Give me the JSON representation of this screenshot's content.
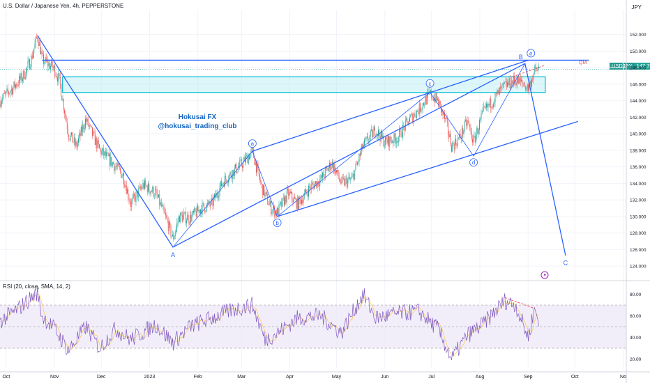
{
  "header": {
    "title": "U.S. Dollar / Japanese Yen, 4h, PEPPERSTONE",
    "currency": "JPY"
  },
  "price_tag": {
    "symbol": "USDJPY",
    "value": "147.798"
  },
  "watermark": {
    "line1": "Hokusai FX",
    "line2": "@hokusai_trading_club"
  },
  "rsi_header": "RSI (20, close, SMA, 14, 2)",
  "qm_label": "QM",
  "colors": {
    "up": "#26a69a",
    "down": "#ef5350",
    "lines": "#2962ff",
    "zone_fill": "#b2ebf2",
    "zone_stroke": "#00bcd4",
    "rsi": "#7e57c2",
    "rsi_band": "#ede7f6",
    "qm": "#ef5350"
  },
  "chart_data": [
    {
      "type": "candlestick",
      "y_ticks": [
        124,
        126,
        128,
        130,
        132,
        134,
        136,
        138,
        140,
        142,
        144,
        146,
        148,
        150,
        152
      ],
      "y_tick_labels": [
        "124.000",
        "126.000",
        "128.000",
        "130.000",
        "132.000",
        "134.000",
        "136.000",
        "138.000",
        "140.000",
        "142.000",
        "144.000",
        "146.000",
        "148.000",
        "150.000",
        "152.000"
      ],
      "ylim": [
        122.5,
        155
      ],
      "x_ticks": [
        "Oct",
        "Nov",
        "Dec",
        "2023",
        "Feb",
        "Mar",
        "Apr",
        "May",
        "Jun",
        "Jul",
        "Aug",
        "Sep",
        "Oct",
        "No"
      ],
      "price_path": [
        [
          "2022-09-27",
          144.0
        ],
        [
          "2022-10-05",
          145.5
        ],
        [
          "2022-10-12",
          147.0
        ],
        [
          "2022-10-17",
          149.0
        ],
        [
          "2022-10-21",
          151.9
        ],
        [
          "2022-10-24",
          149.0
        ],
        [
          "2022-11-01",
          147.8
        ],
        [
          "2022-11-04",
          146.5
        ],
        [
          "2022-11-10",
          140.0
        ],
        [
          "2022-11-15",
          138.5
        ],
        [
          "2022-11-21",
          141.7
        ],
        [
          "2022-11-30",
          138.0
        ],
        [
          "2022-12-08",
          136.5
        ],
        [
          "2022-12-15",
          135.0
        ],
        [
          "2022-12-20",
          131.5
        ],
        [
          "2022-12-28",
          133.8
        ],
        [
          "2023-01-05",
          132.8
        ],
        [
          "2023-01-12",
          129.5
        ],
        [
          "2023-01-16",
          127.3
        ],
        [
          "2023-01-20",
          130.0
        ],
        [
          "2023-01-27",
          129.8
        ],
        [
          "2023-02-03",
          131.0
        ],
        [
          "2023-02-10",
          131.5
        ],
        [
          "2023-02-17",
          134.2
        ],
        [
          "2023-02-24",
          135.5
        ],
        [
          "2023-03-02",
          136.5
        ],
        [
          "2023-03-08",
          137.9
        ],
        [
          "2023-03-14",
          133.5
        ],
        [
          "2023-03-20",
          131.0
        ],
        [
          "2023-03-24",
          130.5
        ],
        [
          "2023-03-31",
          132.8
        ],
        [
          "2023-04-06",
          131.5
        ],
        [
          "2023-04-14",
          133.5
        ],
        [
          "2023-04-21",
          134.5
        ],
        [
          "2023-04-28",
          136.5
        ],
        [
          "2023-05-04",
          134.0
        ],
        [
          "2023-05-11",
          134.5
        ],
        [
          "2023-05-18",
          138.5
        ],
        [
          "2023-05-26",
          140.5
        ],
        [
          "2023-06-01",
          139.0
        ],
        [
          "2023-06-09",
          139.5
        ],
        [
          "2023-06-16",
          141.5
        ],
        [
          "2023-06-23",
          143.0
        ],
        [
          "2023-06-30",
          144.8
        ],
        [
          "2023-07-05",
          144.0
        ],
        [
          "2023-07-10",
          141.5
        ],
        [
          "2023-07-14",
          138.5
        ],
        [
          "2023-07-19",
          139.5
        ],
        [
          "2023-07-24",
          141.5
        ],
        [
          "2023-07-28",
          139.0
        ],
        [
          "2023-08-03",
          142.5
        ],
        [
          "2023-08-10",
          144.2
        ],
        [
          "2023-08-17",
          145.8
        ],
        [
          "2023-08-24",
          146.5
        ],
        [
          "2023-08-29",
          146.0
        ],
        [
          "2023-09-01",
          145.5
        ],
        [
          "2023-09-05",
          147.5
        ],
        [
          "2023-09-08",
          147.8
        ]
      ],
      "waves": [
        {
          "label": "A",
          "circled": false,
          "date": "2023-01-16",
          "price": 126.3
        },
        {
          "label": "a",
          "circled": true,
          "date": "2023-03-08",
          "price": 137.9
        },
        {
          "label": "b",
          "circled": true,
          "date": "2023-03-24",
          "price": 130.0
        },
        {
          "label": "c",
          "circled": true,
          "date": "2023-06-30",
          "price": 145.0
        },
        {
          "label": "d",
          "circled": true,
          "date": "2023-07-28",
          "price": 137.3
        },
        {
          "label": "B",
          "circled": false,
          "date": "2023-08-30",
          "price": 148.5
        },
        {
          "label": "e",
          "circled": true,
          "date": "2023-09-01",
          "price": 148.9
        },
        {
          "label": "C",
          "circled": false,
          "date": "2023-09-25",
          "price": 125.3
        }
      ],
      "resistance_level": 148.9,
      "supply_zone": [
        145.0,
        146.9
      ],
      "current_price": 147.798
    },
    {
      "type": "line",
      "name": "RSI (20, close, SMA, 14, 2)",
      "y_ticks": [
        20,
        40,
        60,
        80
      ],
      "y_tick_labels": [
        "20.00",
        "40.00",
        "60.00",
        "80.00"
      ],
      "ylim": [
        12,
        92
      ],
      "band": [
        30,
        70
      ],
      "midline": 50,
      "rsi_path": [
        [
          "2022-09-27",
          55
        ],
        [
          "2022-10-10",
          68
        ],
        [
          "2022-10-21",
          82
        ],
        [
          "2022-10-24",
          60
        ],
        [
          "2022-11-01",
          48
        ],
        [
          "2022-11-10",
          28
        ],
        [
          "2022-11-21",
          50
        ],
        [
          "2022-11-30",
          30
        ],
        [
          "2022-12-10",
          48
        ],
        [
          "2022-12-20",
          38
        ],
        [
          "2023-01-05",
          52
        ],
        [
          "2023-01-16",
          35
        ],
        [
          "2023-01-27",
          50
        ],
        [
          "2023-02-10",
          58
        ],
        [
          "2023-02-24",
          66
        ],
        [
          "2023-03-08",
          70
        ],
        [
          "2023-03-16",
          38
        ],
        [
          "2023-03-24",
          44
        ],
        [
          "2023-04-06",
          58
        ],
        [
          "2023-04-21",
          60
        ],
        [
          "2023-05-04",
          44
        ],
        [
          "2023-05-18",
          80
        ],
        [
          "2023-05-26",
          58
        ],
        [
          "2023-06-09",
          62
        ],
        [
          "2023-06-23",
          64
        ],
        [
          "2023-07-05",
          48
        ],
        [
          "2023-07-14",
          20
        ],
        [
          "2023-07-24",
          42
        ],
        [
          "2023-08-03",
          52
        ],
        [
          "2023-08-17",
          74
        ],
        [
          "2023-08-24",
          70
        ],
        [
          "2023-09-01",
          40
        ],
        [
          "2023-09-05",
          66
        ],
        [
          "2023-09-08",
          56
        ]
      ],
      "divergence": [
        [
          "2023-08-17",
          77
        ],
        [
          "2023-09-05",
          67
        ]
      ]
    }
  ]
}
